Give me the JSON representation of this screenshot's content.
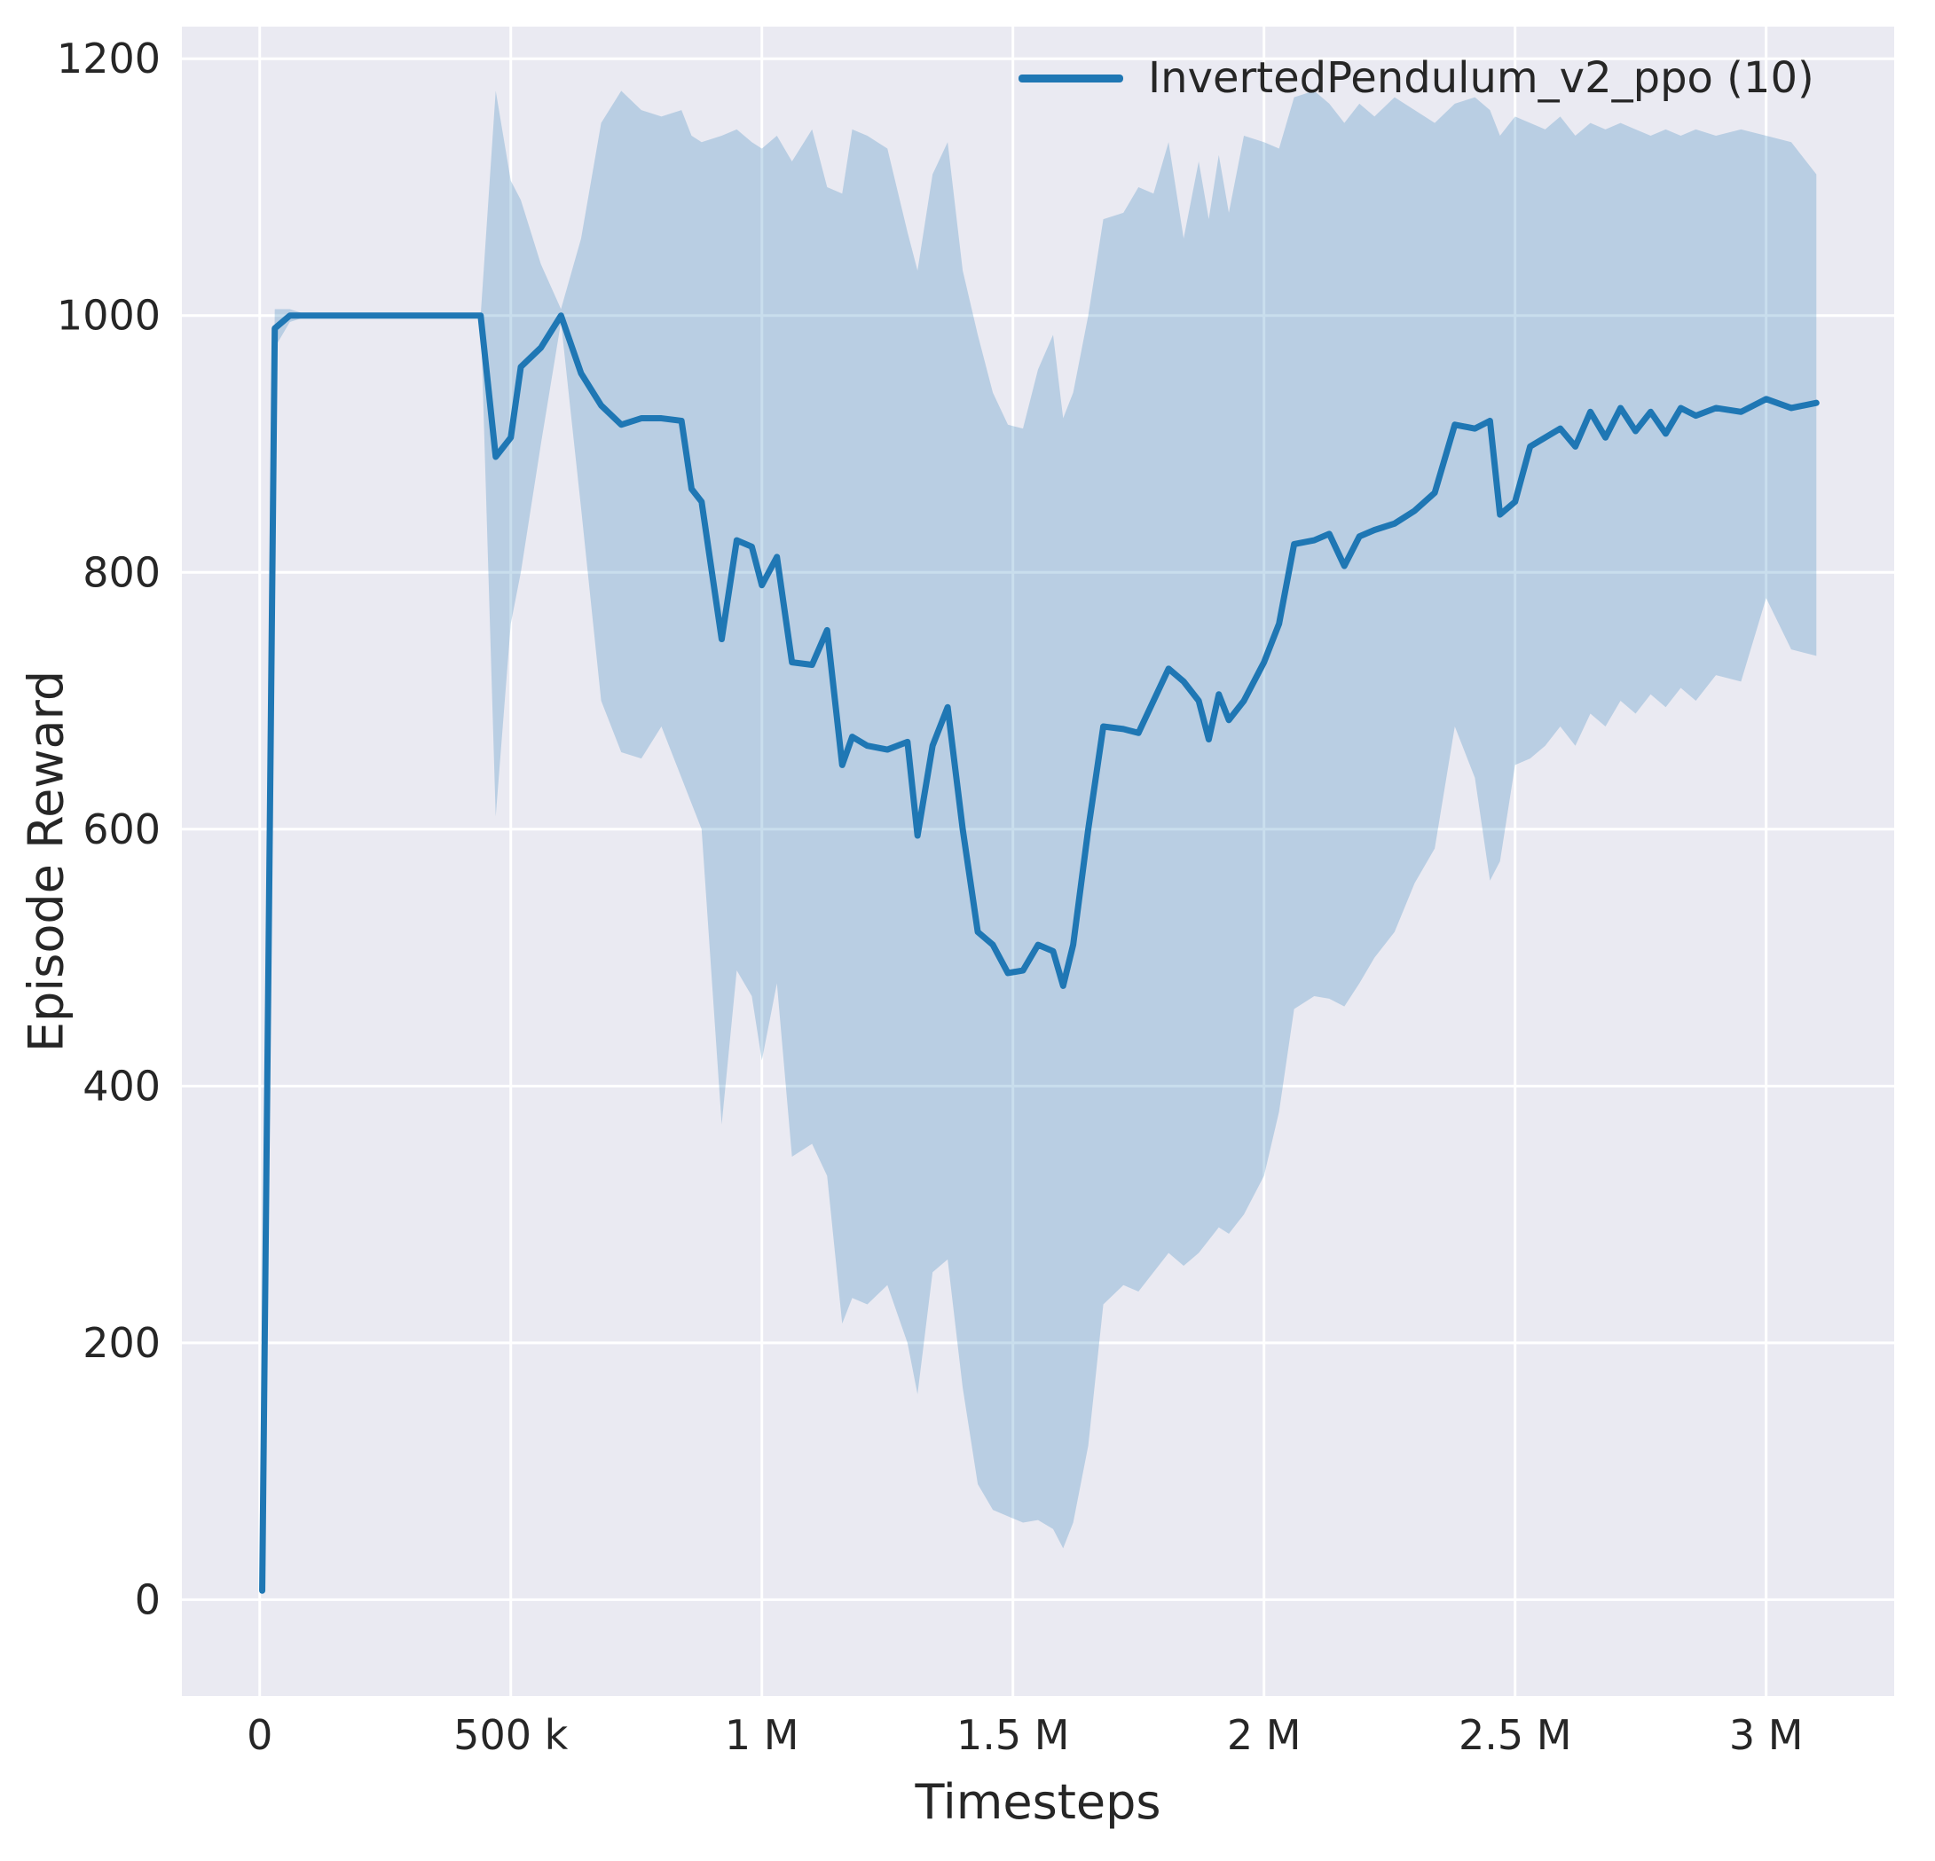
{
  "figure": {
    "background": "#ffffff",
    "plot_background": "#eaeaf2",
    "grid_color": "#ffffff",
    "text_color": "#262626"
  },
  "chart_data": {
    "type": "line",
    "title": "",
    "xlabel": "Timesteps",
    "ylabel": "Episode Reward",
    "xlim": [
      -155000,
      3255000
    ],
    "ylim": [
      -75,
      1225
    ],
    "grid": true,
    "x_ticks": [
      {
        "value": 0,
        "label": "0"
      },
      {
        "value": 500000,
        "label": "500 k"
      },
      {
        "value": 1000000,
        "label": "1 M"
      },
      {
        "value": 1500000,
        "label": "1.5 M"
      },
      {
        "value": 2000000,
        "label": "2 M"
      },
      {
        "value": 2500000,
        "label": "2.5 M"
      },
      {
        "value": 3000000,
        "label": "3 M"
      }
    ],
    "y_ticks": [
      {
        "value": 0,
        "label": "0"
      },
      {
        "value": 200,
        "label": "200"
      },
      {
        "value": 400,
        "label": "400"
      },
      {
        "value": 600,
        "label": "600"
      },
      {
        "value": 800,
        "label": "800"
      },
      {
        "value": 1000,
        "label": "1000"
      },
      {
        "value": 1200,
        "label": "1200"
      }
    ],
    "legend": {
      "position": "top-right",
      "entries": [
        {
          "label": "InvertedPendulum_v2_ppo (10)",
          "color": "#1f77b4"
        }
      ]
    },
    "series": [
      {
        "name": "InvertedPendulum_v2_ppo (10)",
        "color": "#1f77b4",
        "band_opacity": 0.24,
        "line_width": 7,
        "x": [
          5000,
          30000,
          60000,
          100000,
          200000,
          300000,
          400000,
          440000,
          470000,
          500000,
          520000,
          560000,
          600000,
          640000,
          680000,
          720000,
          760000,
          800000,
          840000,
          860000,
          880000,
          920000,
          950000,
          980000,
          1000000,
          1030000,
          1060000,
          1100000,
          1130000,
          1160000,
          1180000,
          1210000,
          1250000,
          1290000,
          1310000,
          1340000,
          1370000,
          1400000,
          1430000,
          1460000,
          1490000,
          1520000,
          1550000,
          1580000,
          1600000,
          1620000,
          1650000,
          1680000,
          1720000,
          1750000,
          1780000,
          1810000,
          1840000,
          1870000,
          1890000,
          1910000,
          1930000,
          1960000,
          2000000,
          2030000,
          2060000,
          2100000,
          2130000,
          2160000,
          2190000,
          2220000,
          2260000,
          2300000,
          2340000,
          2380000,
          2420000,
          2450000,
          2470000,
          2500000,
          2530000,
          2560000,
          2590000,
          2620000,
          2650000,
          2680000,
          2710000,
          2740000,
          2770000,
          2800000,
          2830000,
          2860000,
          2900000,
          2950000,
          3000000,
          3050000,
          3100000
        ],
        "mean": [
          7,
          990,
          1000,
          1000,
          1000,
          1000,
          1000,
          1000,
          890,
          905,
          960,
          975,
          1000,
          955,
          930,
          915,
          920,
          920,
          918,
          865,
          855,
          748,
          825,
          820,
          790,
          812,
          730,
          728,
          755,
          650,
          672,
          665,
          662,
          668,
          595,
          665,
          695,
          600,
          520,
          510,
          488,
          490,
          510,
          505,
          478,
          510,
          600,
          680,
          678,
          675,
          700,
          725,
          715,
          700,
          670,
          705,
          685,
          700,
          730,
          760,
          822,
          825,
          830,
          805,
          828,
          833,
          838,
          848,
          862,
          915,
          912,
          918,
          845,
          855,
          898,
          905,
          912,
          898,
          925,
          905,
          928,
          910,
          925,
          908,
          928,
          922,
          928,
          925,
          935,
          928,
          932
        ],
        "upper": [
          7,
          1005,
          1005,
          1000,
          1000,
          1000,
          1000,
          1000,
          1175,
          1105,
          1090,
          1040,
          1005,
          1060,
          1150,
          1175,
          1160,
          1155,
          1160,
          1140,
          1135,
          1140,
          1145,
          1135,
          1130,
          1140,
          1120,
          1145,
          1100,
          1095,
          1145,
          1140,
          1130,
          1065,
          1035,
          1110,
          1135,
          1035,
          985,
          940,
          915,
          912,
          958,
          985,
          920,
          940,
          1000,
          1075,
          1080,
          1100,
          1095,
          1135,
          1060,
          1120,
          1075,
          1125,
          1080,
          1140,
          1135,
          1130,
          1170,
          1175,
          1165,
          1150,
          1165,
          1155,
          1170,
          1160,
          1150,
          1165,
          1170,
          1160,
          1140,
          1155,
          1150,
          1145,
          1155,
          1140,
          1150,
          1145,
          1150,
          1145,
          1140,
          1145,
          1140,
          1145,
          1140,
          1145,
          1140,
          1135,
          1110
        ],
        "lower": [
          7,
          975,
          995,
          1000,
          1000,
          1000,
          1000,
          1000,
          610,
          760,
          800,
          900,
          995,
          850,
          700,
          660,
          655,
          680,
          640,
          620,
          600,
          370,
          490,
          470,
          420,
          480,
          345,
          355,
          330,
          215,
          235,
          230,
          245,
          200,
          160,
          255,
          265,
          165,
          90,
          70,
          65,
          60,
          62,
          55,
          40,
          60,
          120,
          230,
          245,
          240,
          255,
          270,
          260,
          270,
          280,
          290,
          285,
          300,
          330,
          380,
          460,
          470,
          468,
          462,
          480,
          500,
          520,
          558,
          585,
          680,
          640,
          560,
          575,
          650,
          655,
          665,
          680,
          665,
          690,
          680,
          700,
          690,
          705,
          695,
          710,
          700,
          720,
          715,
          780,
          740,
          735
        ]
      }
    ]
  }
}
